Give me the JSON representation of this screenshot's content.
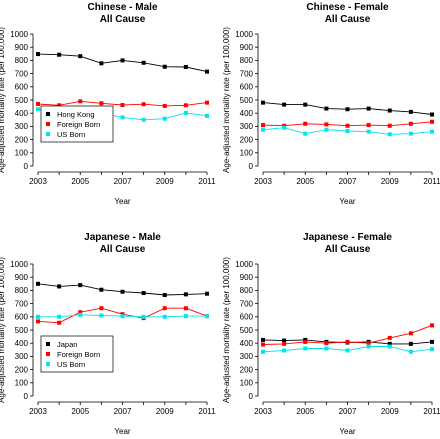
{
  "chart_data": [
    {
      "type": "line",
      "title": "Chinese - Male",
      "subtitle": "All Cause",
      "xlabel": "Year",
      "ylabel": "Age-adjusted mortality rate (per 100,000)",
      "ylim": [
        0,
        1000
      ],
      "xlim": [
        2003,
        2011
      ],
      "x": [
        2003,
        2004,
        2005,
        2006,
        2007,
        2008,
        2009,
        2010,
        2011
      ],
      "x_ticks": [
        2003,
        2005,
        2007,
        2009,
        2011
      ],
      "y_ticks": [
        0,
        100,
        200,
        300,
        400,
        500,
        600,
        700,
        800,
        900,
        1000
      ],
      "legend": true,
      "legend_position": "lower-left",
      "series": [
        {
          "name": "Hong Kong",
          "color": "#000000",
          "values": [
            848,
            843,
            832,
            778,
            800,
            782,
            752,
            750,
            715
          ]
        },
        {
          "name": "Foreign Born",
          "color": "#ff0000",
          "values": [
            470,
            460,
            490,
            475,
            462,
            468,
            455,
            460,
            480
          ]
        },
        {
          "name": "US Born",
          "color": "#00e5ee",
          "values": [
            430,
            385,
            390,
            400,
            368,
            350,
            358,
            402,
            380
          ]
        }
      ]
    },
    {
      "type": "line",
      "title": "Chinese - Female",
      "subtitle": "All Cause",
      "xlabel": "Year",
      "ylabel": "Age-adjusted mortality rate (per 100,000)",
      "ylim": [
        0,
        1000
      ],
      "xlim": [
        2003,
        2011
      ],
      "x": [
        2003,
        2004,
        2005,
        2006,
        2007,
        2008,
        2009,
        2010,
        2011
      ],
      "x_ticks": [
        2003,
        2005,
        2007,
        2009,
        2011
      ],
      "y_ticks": [
        0,
        100,
        200,
        300,
        400,
        500,
        600,
        700,
        800,
        900,
        1000
      ],
      "legend": false,
      "series": [
        {
          "name": "Hong Kong",
          "color": "#000000",
          "values": [
            480,
            465,
            465,
            435,
            430,
            435,
            420,
            410,
            390
          ]
        },
        {
          "name": "Foreign Born",
          "color": "#ff0000",
          "values": [
            310,
            305,
            320,
            315,
            305,
            310,
            305,
            320,
            335
          ]
        },
        {
          "name": "US Born",
          "color": "#00e5ee",
          "values": [
            275,
            290,
            245,
            275,
            265,
            260,
            240,
            245,
            260
          ]
        }
      ]
    },
    {
      "type": "line",
      "title": "Japanese - Male",
      "subtitle": "All Cause",
      "xlabel": "Year",
      "ylabel": "Age-adjusted mortality rate (per 100,000)",
      "ylim": [
        0,
        1000
      ],
      "xlim": [
        2003,
        2011
      ],
      "x": [
        2003,
        2004,
        2005,
        2006,
        2007,
        2008,
        2009,
        2010,
        2011
      ],
      "x_ticks": [
        2003,
        2005,
        2007,
        2009,
        2011
      ],
      "y_ticks": [
        0,
        100,
        200,
        300,
        400,
        500,
        600,
        700,
        800,
        900,
        1000
      ],
      "legend": true,
      "legend_position": "lower-left",
      "series": [
        {
          "name": "Japan",
          "color": "#000000",
          "values": [
            850,
            830,
            840,
            805,
            790,
            780,
            765,
            770,
            775
          ]
        },
        {
          "name": "Foreign Born",
          "color": "#ff0000",
          "values": [
            565,
            555,
            635,
            665,
            620,
            590,
            665,
            665,
            605
          ]
        },
        {
          "name": "US Born",
          "color": "#00e5ee",
          "values": [
            600,
            600,
            615,
            610,
            605,
            600,
            600,
            605,
            605
          ]
        }
      ]
    },
    {
      "type": "line",
      "title": "Japanese - Female",
      "subtitle": "All Cause",
      "xlabel": "Year",
      "ylabel": "Age-adjusted mortality rate (per 100,000)",
      "ylim": [
        0,
        1000
      ],
      "xlim": [
        2003,
        2011
      ],
      "x": [
        2003,
        2004,
        2005,
        2006,
        2007,
        2008,
        2009,
        2010,
        2011
      ],
      "x_ticks": [
        2003,
        2005,
        2007,
        2009,
        2011
      ],
      "y_ticks": [
        0,
        100,
        200,
        300,
        400,
        500,
        600,
        700,
        800,
        900,
        1000
      ],
      "legend": false,
      "series": [
        {
          "name": "Japan",
          "color": "#000000",
          "values": [
            425,
            420,
            425,
            410,
            405,
            410,
            395,
            395,
            410
          ]
        },
        {
          "name": "Foreign Born",
          "color": "#ff0000",
          "values": [
            390,
            395,
            410,
            400,
            410,
            400,
            440,
            475,
            535
          ]
        },
        {
          "name": "US Born",
          "color": "#00e5ee",
          "values": [
            335,
            345,
            360,
            360,
            345,
            375,
            375,
            335,
            355
          ]
        }
      ]
    }
  ]
}
